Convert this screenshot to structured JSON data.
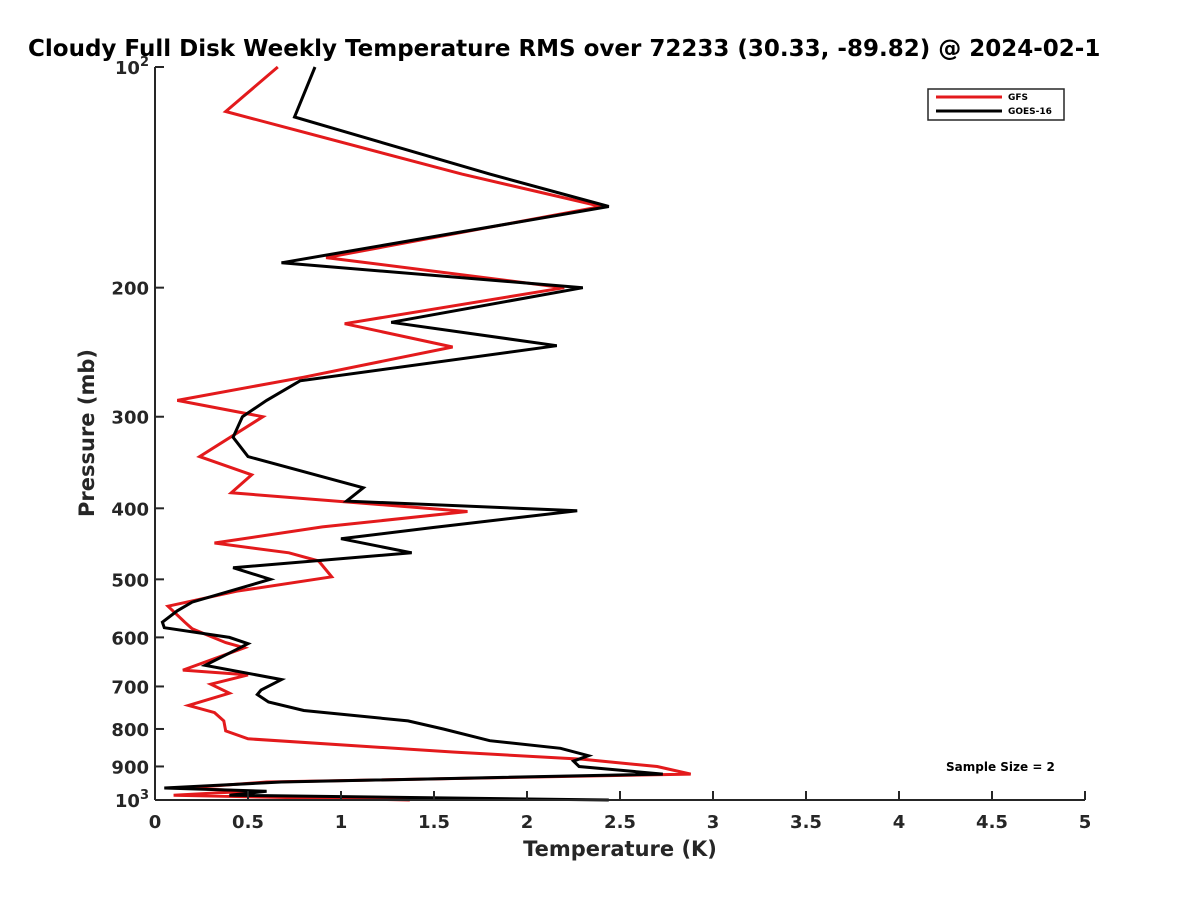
{
  "chart_data": {
    "type": "line",
    "title": "Cloudy Full Disk Weekly Temperature RMS over 72233 (30.33, -89.82) @ 2024-02-1",
    "xlabel": "Temperature (K)",
    "ylabel": "Pressure (mb)",
    "xlim": [
      0,
      5
    ],
    "ylim": [
      100,
      1000
    ],
    "y_scale": "log",
    "y_reversed": true,
    "x_ticks": [
      "0",
      "0.5",
      "1",
      "1.5",
      "2",
      "2.5",
      "3",
      "3.5",
      "4",
      "4.5",
      "5"
    ],
    "y_ticks": [
      {
        "value": 100,
        "base": "10",
        "exp": "2"
      },
      {
        "value": 200,
        "label": "200"
      },
      {
        "value": 300,
        "label": "300"
      },
      {
        "value": 400,
        "label": "400"
      },
      {
        "value": 500,
        "label": "500"
      },
      {
        "value": 600,
        "label": "600"
      },
      {
        "value": 700,
        "label": "700"
      },
      {
        "value": 800,
        "label": "800"
      },
      {
        "value": 900,
        "label": "900"
      },
      {
        "value": 1000,
        "base": "10",
        "exp": "3"
      }
    ],
    "legend_position": "top-right",
    "annotation": "Sample Size = 2",
    "series": [
      {
        "name": "GFS",
        "color": "#e31a1c",
        "points": [
          [
            0.66,
            100
          ],
          [
            0.38,
            115
          ],
          [
            1.65,
            140
          ],
          [
            2.4,
            155
          ],
          [
            0.92,
            182
          ],
          [
            2.2,
            200
          ],
          [
            1.02,
            224
          ],
          [
            1.6,
            241
          ],
          [
            0.8,
            265
          ],
          [
            0.12,
            285
          ],
          [
            0.58,
            300
          ],
          [
            0.24,
            340
          ],
          [
            0.52,
            360
          ],
          [
            0.41,
            381
          ],
          [
            1.68,
            404
          ],
          [
            0.9,
            424
          ],
          [
            0.32,
            446
          ],
          [
            0.72,
            460
          ],
          [
            0.88,
            472
          ],
          [
            0.95,
            496
          ],
          [
            0.44,
            519
          ],
          [
            0.07,
            544
          ],
          [
            0.16,
            572
          ],
          [
            0.2,
            584
          ],
          [
            0.38,
            610
          ],
          [
            0.48,
            620
          ],
          [
            0.15,
            665
          ],
          [
            0.5,
            675
          ],
          [
            0.3,
            695
          ],
          [
            0.4,
            715
          ],
          [
            0.18,
            743
          ],
          [
            0.32,
            760
          ],
          [
            0.37,
            780
          ],
          [
            0.38,
            805
          ],
          [
            0.5,
            825
          ],
          [
            1.6,
            860
          ],
          [
            2.3,
            880
          ],
          [
            2.7,
            900
          ],
          [
            2.88,
            922
          ],
          [
            0.6,
            945
          ],
          [
            0.17,
            963
          ],
          [
            0.5,
            973
          ],
          [
            0.1,
            985
          ],
          [
            1.37,
            1000
          ]
        ]
      },
      {
        "name": "GOES-16",
        "color": "#000000",
        "points": [
          [
            0.86,
            100
          ],
          [
            0.75,
            117
          ],
          [
            1.8,
            140
          ],
          [
            2.44,
            155
          ],
          [
            0.68,
            185
          ],
          [
            2.3,
            200
          ],
          [
            1.27,
            223
          ],
          [
            2.16,
            240
          ],
          [
            0.78,
            268
          ],
          [
            0.6,
            285
          ],
          [
            0.47,
            300
          ],
          [
            0.42,
            320
          ],
          [
            0.5,
            340
          ],
          [
            1.12,
            375
          ],
          [
            1.03,
            391
          ],
          [
            2.27,
            403
          ],
          [
            1.49,
            425
          ],
          [
            1.0,
            440
          ],
          [
            1.38,
            460
          ],
          [
            0.42,
            482
          ],
          [
            0.62,
            500
          ],
          [
            0.2,
            537
          ],
          [
            0.12,
            552
          ],
          [
            0.04,
            572
          ],
          [
            0.05,
            582
          ],
          [
            0.4,
            600
          ],
          [
            0.5,
            612
          ],
          [
            0.27,
            655
          ],
          [
            0.68,
            685
          ],
          [
            0.57,
            708
          ],
          [
            0.55,
            718
          ],
          [
            0.61,
            735
          ],
          [
            0.8,
            755
          ],
          [
            1.36,
            780
          ],
          [
            1.55,
            800
          ],
          [
            1.8,
            830
          ],
          [
            2.18,
            850
          ],
          [
            2.33,
            870
          ],
          [
            2.25,
            885
          ],
          [
            2.28,
            900
          ],
          [
            2.73,
            922
          ],
          [
            0.68,
            945
          ],
          [
            0.05,
            963
          ],
          [
            0.6,
            973
          ],
          [
            0.4,
            985
          ],
          [
            2.44,
            1000
          ]
        ]
      }
    ]
  }
}
